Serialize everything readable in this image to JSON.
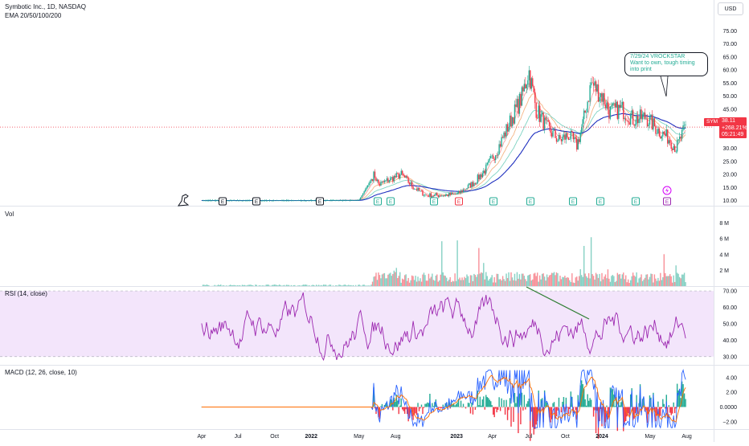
{
  "header": {
    "title": "Symbotic Inc., 1D, NASDAQ",
    "indicator": "EMA 20/50/100/200",
    "currency_button": "USD"
  },
  "price_tag": {
    "symbol": "SYM",
    "price": "38.11",
    "change": "+268.21%",
    "countdown": "05:21:49"
  },
  "annotation": {
    "line1": "7/29/24 VROCKSTAR",
    "line2": "Want to own, tough timing",
    "line3": "into print"
  },
  "panes": {
    "volume": {
      "title": "Vol"
    },
    "rsi": {
      "title": "RSI (14, close)"
    },
    "macd": {
      "title": "MACD (12, 26, close, 10)"
    }
  },
  "colors": {
    "up": "#22ab94",
    "down": "#f23645",
    "ema20": "#f7a1a1",
    "ema50": "#f5b585",
    "ema100": "#7fd3c3",
    "ema200": "#1e2fbf",
    "rsi": "#9c27b0",
    "rsi_band": "#f3e5fb",
    "macd": "#2962ff",
    "signal": "#ff6d00",
    "trendline": "#2e7d32"
  },
  "chart_data": [
    {
      "type": "line",
      "name": "price",
      "x_tick_labels": [
        "Apr",
        "Jul",
        "Oct",
        "2022",
        "May",
        "Aug",
        "2023",
        "Apr",
        "Jul",
        "Oct",
        "2024",
        "May",
        "Aug"
      ],
      "y_tick_labels": [
        "75.00",
        "70.00",
        "65.00",
        "60.00",
        "55.00",
        "50.00",
        "45.00",
        "40.00",
        "35.00",
        "30.00",
        "25.00",
        "20.00",
        "15.00",
        "10.00"
      ],
      "ylim": [
        8,
        80
      ],
      "last_price": 38.11,
      "earnings_markers": [
        "E",
        "E",
        "E",
        "E",
        "E",
        "E",
        "E",
        "E",
        "E",
        "E",
        "E",
        "E",
        "E"
      ],
      "series": [
        {
          "values": [
            [
              "2021-04-01",
              10.0
            ],
            [
              "2021-07-01",
              10.0
            ],
            [
              "2021-10-01",
              10.0
            ],
            [
              "2022-01-03",
              10.0
            ],
            [
              "2022-05-01",
              10.1
            ],
            [
              "2022-06-08",
              20.0
            ],
            [
              "2022-06-20",
              16.0
            ],
            [
              "2022-07-15",
              18.0
            ],
            [
              "2022-08-15",
              20.0
            ],
            [
              "2022-09-15",
              15.0
            ],
            [
              "2022-10-15",
              12.0
            ],
            [
              "2022-12-01",
              12.0
            ],
            [
              "2023-01-03",
              12.5
            ],
            [
              "2023-02-15",
              17.0
            ],
            [
              "2023-03-15",
              22.0
            ],
            [
              "2023-04-15",
              30.0
            ],
            [
              "2023-05-15",
              40.0
            ],
            [
              "2023-06-15",
              50.0
            ],
            [
              "2023-07-01",
              60.0
            ],
            [
              "2023-07-20",
              45.0
            ],
            [
              "2023-08-15",
              38.0
            ],
            [
              "2023-09-15",
              33.0
            ],
            [
              "2023-10-10",
              35.0
            ],
            [
              "2023-10-30",
              31.0
            ],
            [
              "2023-11-15",
              40.0
            ],
            [
              "2023-12-05",
              55.0
            ],
            [
              "2024-01-02",
              50.0
            ],
            [
              "2024-01-20",
              44.0
            ],
            [
              "2024-02-20",
              45.0
            ],
            [
              "2024-03-20",
              41.0
            ],
            [
              "2024-04-20",
              42.0
            ],
            [
              "2024-05-20",
              37.0
            ],
            [
              "2024-06-15",
              34.0
            ],
            [
              "2024-07-05",
              30.0
            ],
            [
              "2024-07-29",
              38.11
            ]
          ]
        }
      ]
    },
    {
      "type": "bar",
      "name": "volume",
      "y_tick_labels": [
        "8 M",
        "6 M",
        "4 M",
        "2 M"
      ],
      "ylim": [
        0,
        10000000
      ]
    },
    {
      "type": "line",
      "name": "rsi",
      "y_tick_labels": [
        "70.00",
        "60.00",
        "50.00",
        "40.00",
        "30.00"
      ],
      "ylim": [
        25,
        72
      ],
      "band": [
        30,
        70
      ]
    },
    {
      "type": "line",
      "name": "macd",
      "y_tick_labels": [
        "4.00",
        "2.00",
        "0.0000",
        "−2.00"
      ],
      "ylim": [
        -3,
        5.5
      ]
    }
  ]
}
